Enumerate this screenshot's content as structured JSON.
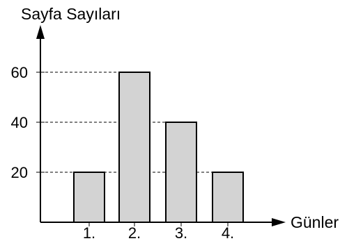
{
  "chart_data": {
    "type": "bar",
    "categories": [
      "1.",
      "2.",
      "3.",
      "4."
    ],
    "values": [
      20,
      60,
      40,
      20
    ],
    "yticks": [
      20,
      40,
      60
    ],
    "ylabel": "Sayfa Sayıları",
    "xlabel": "Günler",
    "grid": "dashed lines at y ticks",
    "bar_color": "#d3d3d3",
    "stroke_color": "#000000"
  }
}
